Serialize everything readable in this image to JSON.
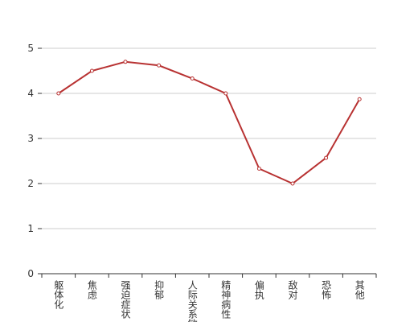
{
  "chart_data": {
    "type": "line",
    "categories": [
      "躯体化",
      "焦虑",
      "强迫症状",
      "抑郁",
      "人际关系敏感",
      "精神病性",
      "偏执",
      "敌对",
      "恐怖",
      "其他"
    ],
    "values": [
      4.0,
      4.5,
      4.7,
      4.62,
      4.33,
      4.0,
      2.33,
      2.0,
      2.57,
      3.87
    ],
    "color": "#b83232",
    "ylim": [
      0,
      5
    ],
    "yticks": [
      0,
      1,
      2,
      3,
      4,
      5
    ],
    "grid": true
  }
}
